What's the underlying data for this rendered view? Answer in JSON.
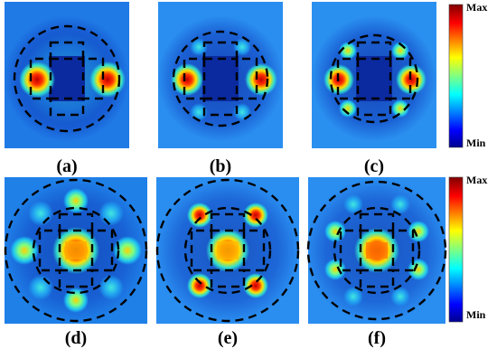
{
  "panels": [
    {
      "label": "(a)"
    },
    {
      "label": "(b)"
    },
    {
      "label": "(c)"
    },
    {
      "label": "(d)"
    },
    {
      "label": "(e)"
    },
    {
      "label": "(f)"
    }
  ],
  "colorbars": [
    {
      "max": "Max",
      "min": "Min"
    },
    {
      "max": "Max",
      "min": "Min"
    }
  ]
}
